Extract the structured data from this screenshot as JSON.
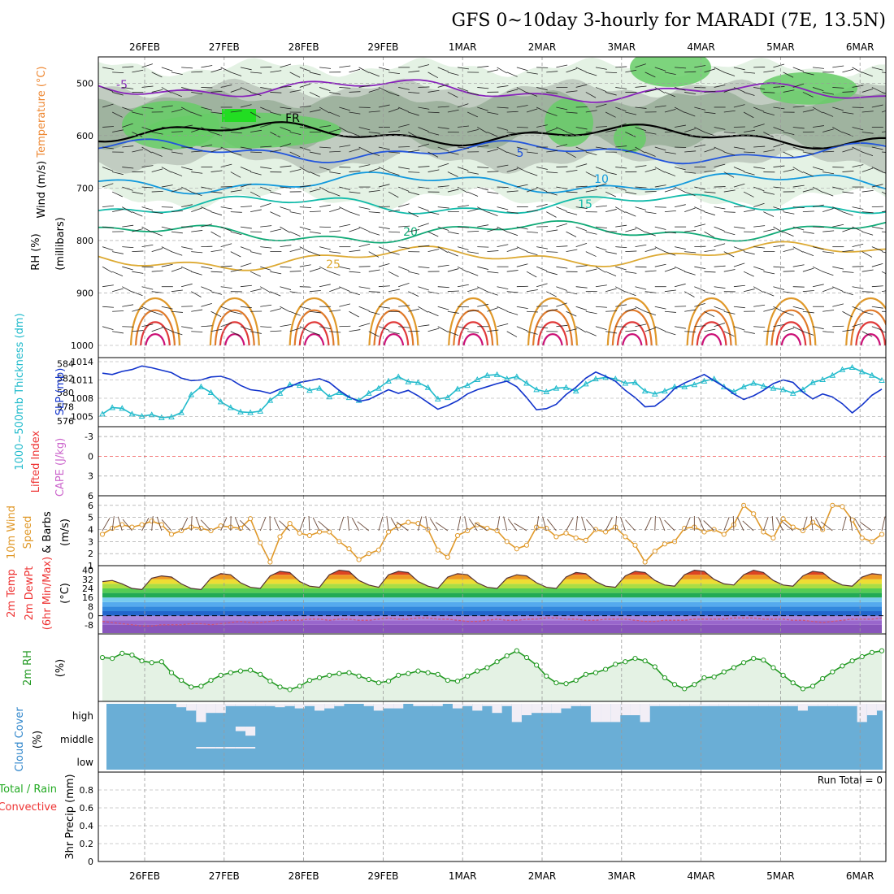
{
  "title": "GFS 0~10day 3-hourly for MARADI (7E, 13.5N)",
  "dates": [
    "26FEB",
    "27FEB",
    "28FEB",
    "29FEB",
    "1MAR",
    "2MAR",
    "3MAR",
    "4MAR",
    "5MAR",
    "6MAR"
  ],
  "run_total": "Run Total = 0",
  "colors": {
    "rh_light": "#e4f2e4",
    "rh_mid": "#bcc8bc",
    "rh_dark": "#90a890",
    "rh_green": "#66cc66",
    "rh_bright": "#22dd22",
    "slp": "#1133cc",
    "thickness": "#22bbcc",
    "wind_speed": "#e0992a",
    "rh2m": "#229922",
    "cloud": "#6aaed6",
    "precip_total": "#22aa22",
    "precip_conv": "#ee3333",
    "lifted_index": "#ee3333",
    "cape": "#cc66cc"
  },
  "panels": {
    "upper_air": {
      "ylabels": [
        {
          "text": "Wind (m/s)",
          "color": "#000000"
        },
        {
          "text": "Temperature (°C)",
          "color": "#ee8833"
        },
        {
          "text": "RH (%)",
          "color": "#000000"
        }
      ],
      "axis_title": "(millibars)",
      "ylim": [
        1000,
        450
      ],
      "yticks": [
        500,
        600,
        700,
        800,
        900,
        1000
      ],
      "isotherms": [
        {
          "label": "-5",
          "value": -5,
          "color": "#8822bb"
        },
        {
          "label": "FR",
          "value": 0,
          "color": "#000000"
        },
        {
          "label": "5",
          "value": 5,
          "color": "#2255dd"
        },
        {
          "label": "10",
          "value": 10,
          "color": "#1199dd"
        },
        {
          "label": "15",
          "value": 15,
          "color": "#11bbaa"
        },
        {
          "label": "20",
          "value": 20,
          "color": "#11aa77"
        },
        {
          "label": "25",
          "value": 25,
          "color": "#ddaa33"
        }
      ]
    },
    "slp_thickness": {
      "ylabels": [
        {
          "text": "SLP (mb)",
          "color": "#1133cc"
        },
        {
          "text": "1000~500mb Thickness (dm)",
          "color": "#22bbcc"
        }
      ],
      "left_ticks": [
        576,
        578,
        580,
        582,
        584
      ],
      "right_ticks": [
        1005,
        1008,
        1011,
        1014
      ]
    },
    "instability": {
      "ylabels": [
        {
          "text": "Lifted Index",
          "color": "#ee3333"
        },
        {
          "text": "CAPE (J/kg)",
          "color": "#cc66cc"
        }
      ],
      "ticks": [
        -3,
        0,
        3,
        6
      ]
    },
    "wind10m": {
      "ylabels": [
        {
          "text": "10m Wind",
          "color": "#e0992a"
        },
        {
          "text": "Speed",
          "color": "#e0992a"
        },
        {
          "text": "& Barbs",
          "color": "#000000"
        },
        {
          "text": "(m/s)",
          "color": "#000000"
        }
      ],
      "ticks": [
        1,
        2,
        3,
        4,
        5,
        6
      ],
      "ylim": [
        1,
        6.8
      ]
    },
    "temp2m": {
      "ylabels": [
        {
          "text": "2m Temp",
          "color": "#ee3333"
        },
        {
          "text": "2m DewPt",
          "color": "#ee3333"
        },
        {
          "text": "(6hr Min/Max)",
          "color": "#ee3333"
        },
        {
          "text": "(°C)",
          "color": "#000000"
        }
      ],
      "ticks": [
        -8,
        0,
        8,
        16,
        24,
        32,
        40
      ],
      "ylim": [
        -16,
        44
      ]
    },
    "rh2m": {
      "ylabels": [
        {
          "text": "2m RH",
          "color": "#229922"
        },
        {
          "text": "(%)",
          "color": "#000000"
        }
      ],
      "ylim": [
        0,
        80
      ]
    },
    "cloud": {
      "ylabels": [
        {
          "text": "Cloud Cover",
          "color": "#3388cc"
        },
        {
          "text": "(%)",
          "color": "#000000"
        }
      ],
      "levels": [
        "high",
        "middle",
        "low"
      ]
    },
    "precip": {
      "ylabels": [
        {
          "text": "Total / Rain",
          "color": "#22aa22"
        },
        {
          "text": "Convective",
          "color": "#ee3333"
        },
        {
          "text": "3hr Precip (mm)",
          "color": "#000000"
        }
      ],
      "ticks": [
        0,
        0.2,
        0.4,
        0.6,
        0.8
      ],
      "ylim": [
        0,
        1
      ]
    }
  },
  "chart_data": {
    "type": "line",
    "x_start": "25FEB 12Z",
    "step_hours": 3,
    "n": 80,
    "slp_mb": [
      1012.1,
      1011.9,
      1012.4,
      1012.7,
      1013.3,
      1013.0,
      1012.6,
      1012.2,
      1011.3,
      1010.9,
      1011.0,
      1011.5,
      1011.6,
      1011.1,
      1010.1,
      1009.4,
      1009.2,
      1008.8,
      1009.5,
      1009.9,
      1010.6,
      1010.9,
      1011.2,
      1010.6,
      1009.3,
      1008.2,
      1007.5,
      1007.8,
      1008.6,
      1009.4,
      1008.8,
      1009.3,
      1008.4,
      1007.3,
      1006.2,
      1006.8,
      1007.6,
      1008.7,
      1009.4,
      1009.9,
      1010.4,
      1010.8,
      1009.9,
      1008.1,
      1006.1,
      1006.3,
      1007.0,
      1008.6,
      1009.8,
      1011.3,
      1012.3,
      1011.6,
      1010.8,
      1009.3,
      1008.1,
      1006.6,
      1006.7,
      1007.9,
      1009.6,
      1010.5,
      1011.2,
      1011.9,
      1010.9,
      1009.9,
      1008.7,
      1007.8,
      1008.4,
      1009.3,
      1010.4,
      1011.0,
      1010.6,
      1009.0,
      1007.9,
      1008.7,
      1008.2,
      1007.1,
      1005.6,
      1006.9,
      1008.5,
      1009.5
    ],
    "thickness_dm": [
      577.0,
      577.9,
      577.8,
      577.0,
      576.7,
      576.9,
      576.5,
      576.6,
      577.2,
      579.7,
      580.8,
      580.0,
      578.7,
      577.9,
      577.3,
      577.2,
      577.4,
      578.9,
      579.9,
      581.1,
      581.0,
      580.3,
      580.6,
      579.4,
      580.0,
      579.3,
      578.9,
      579.9,
      580.6,
      581.6,
      582.2,
      581.5,
      581.4,
      580.7,
      579.1,
      579.3,
      580.5,
      581.0,
      581.8,
      582.4,
      582.5,
      581.9,
      582.2,
      581.3,
      580.4,
      580.1,
      580.6,
      580.7,
      580.2,
      581.2,
      581.9,
      582.1,
      581.9,
      581.3,
      581.4,
      580.2,
      579.8,
      580.2,
      580.8,
      580.8,
      581.1,
      581.6,
      581.9,
      580.8,
      580.1,
      580.8,
      581.3,
      580.9,
      580.6,
      580.4,
      579.9,
      580.4,
      581.4,
      581.8,
      582.4,
      583.2,
      583.5,
      582.9,
      582.4,
      581.7
    ],
    "wind10m_speed_ms": [
      3.6,
      4.1,
      4.4,
      4.2,
      4.4,
      4.7,
      4.4,
      3.6,
      3.9,
      4.2,
      4.1,
      3.9,
      4.3,
      4.2,
      4.1,
      4.9,
      2.9,
      1.3,
      3.4,
      4.5,
      3.7,
      3.5,
      3.8,
      3.8,
      3.0,
      2.4,
      1.5,
      2.0,
      2.3,
      3.8,
      4.3,
      4.6,
      4.5,
      4.0,
      2.3,
      1.7,
      3.5,
      3.9,
      4.4,
      4.1,
      3.9,
      3.0,
      2.4,
      2.7,
      4.2,
      4.1,
      3.4,
      3.7,
      3.3,
      3.1,
      4.0,
      3.8,
      4.2,
      3.4,
      2.7,
      1.3,
      2.2,
      2.8,
      3.0,
      4.1,
      4.2,
      3.8,
      4.0,
      3.6,
      4.4,
      6.0,
      5.3,
      3.8,
      3.3,
      4.9,
      4.2,
      3.9,
      4.6,
      4.0,
      6.0,
      5.9,
      4.8,
      3.3,
      3.0,
      3.6
    ],
    "t2m_c": [
      30,
      31,
      28,
      24,
      23,
      33,
      35,
      34,
      28,
      24,
      23,
      33,
      37,
      36,
      29,
      25,
      24,
      35,
      39,
      38,
      30,
      26,
      25,
      36,
      40,
      39,
      31,
      27,
      25,
      36,
      39,
      38,
      30,
      26,
      24,
      34,
      37,
      36,
      29,
      25,
      24,
      33,
      36,
      35,
      29,
      25,
      24,
      34,
      38,
      37,
      30,
      26,
      25,
      35,
      39,
      38,
      31,
      27,
      26,
      36,
      40,
      39,
      32,
      28,
      27,
      36,
      40,
      38,
      31,
      27,
      26,
      35,
      39,
      38,
      31,
      27,
      26,
      34,
      37,
      36
    ],
    "td2m_c": [
      -5,
      -6,
      -7,
      -8,
      -9,
      -9,
      -8,
      -8,
      -8,
      -7,
      -7,
      -8,
      -7,
      -6,
      -5,
      -6,
      -6,
      -5,
      -4,
      -4,
      -4,
      -3,
      -3,
      -4,
      -3,
      -3,
      -4,
      -4,
      -3,
      -2,
      -3,
      -3,
      -2,
      -2,
      -3,
      -3,
      -4,
      -5,
      -5,
      -4,
      -3,
      -4,
      -4,
      -3,
      -3,
      -2,
      -2,
      -3,
      -3,
      -4,
      -4,
      -3,
      -3,
      -3,
      -4,
      -5,
      -5,
      -4,
      -4,
      -4,
      -3,
      -3,
      -3,
      -3,
      -2,
      -2,
      -2,
      -3,
      -3,
      -3,
      -4,
      -4,
      -5,
      -6,
      -5,
      -4,
      -3,
      -3,
      -3,
      -2
    ],
    "rh2m_pct": [
      52,
      51,
      57,
      55,
      48,
      46,
      47,
      34,
      25,
      17,
      18,
      25,
      31,
      34,
      36,
      37,
      32,
      24,
      17,
      14,
      18,
      25,
      28,
      31,
      33,
      34,
      30,
      26,
      22,
      24,
      31,
      33,
      36,
      34,
      32,
      25,
      24,
      30,
      36,
      40,
      47,
      54,
      60,
      52,
      43,
      30,
      22,
      21,
      25,
      32,
      34,
      38,
      44,
      47,
      51,
      48,
      41,
      28,
      20,
      15,
      20,
      28,
      29,
      35,
      40,
      46,
      51,
      49,
      40,
      31,
      22,
      15,
      18,
      27,
      35,
      42,
      48,
      53,
      58,
      60
    ],
    "cloud_high_pct": [
      0,
      0,
      0,
      0,
      0,
      0,
      0,
      0,
      15,
      30,
      80,
      40,
      40,
      10,
      10,
      10,
      10,
      10,
      15,
      10,
      20,
      10,
      30,
      20,
      10,
      0,
      0,
      10,
      30,
      20,
      20,
      0,
      10,
      10,
      10,
      0,
      20,
      10,
      30,
      10,
      40,
      10,
      80,
      50,
      40,
      40,
      40,
      20,
      10,
      10,
      80,
      80,
      80,
      50,
      50,
      80,
      10,
      10,
      10,
      10,
      10,
      10,
      10,
      10,
      10,
      10,
      10,
      10,
      10,
      10,
      10,
      30,
      10,
      10,
      10,
      10,
      10,
      80,
      50,
      30
    ],
    "cloud_mid_pct": [
      0,
      0,
      0,
      0,
      0,
      0,
      0,
      0,
      0,
      0,
      0,
      0,
      0,
      0,
      20,
      40,
      0,
      0,
      0,
      0,
      0,
      0,
      0,
      0,
      0,
      0,
      0,
      0,
      0,
      0,
      0,
      0,
      0,
      0,
      0,
      0,
      0,
      0,
      0,
      0,
      0,
      0,
      0,
      0,
      0,
      0,
      0,
      0,
      0,
      0,
      0,
      0,
      0,
      0,
      0,
      0,
      0,
      0,
      0,
      0,
      0,
      0,
      0,
      0,
      0,
      0,
      0,
      0,
      0,
      0,
      0,
      0,
      0,
      0,
      0,
      0,
      0,
      0,
      0,
      0
    ],
    "cloud_low_pct": [
      0,
      0,
      0,
      0,
      0,
      0,
      0,
      0,
      0,
      0,
      5,
      5,
      5,
      5,
      5,
      5,
      0,
      0,
      0,
      0,
      0,
      0,
      0,
      0,
      0,
      0,
      0,
      0,
      0,
      0,
      0,
      0,
      0,
      0,
      0,
      0,
      0,
      0,
      0,
      0,
      0,
      0,
      0,
      0,
      0,
      0,
      0,
      0,
      0,
      0,
      0,
      0,
      0,
      0,
      0,
      0,
      0,
      0,
      0,
      0,
      0,
      0,
      0,
      0,
      0,
      0,
      0,
      0,
      0,
      0,
      0,
      0,
      0,
      0,
      0,
      0,
      0,
      0,
      0,
      0
    ],
    "precip_3hr_mm": [
      0,
      0,
      0,
      0,
      0,
      0,
      0,
      0,
      0,
      0,
      0,
      0,
      0,
      0,
      0,
      0,
      0,
      0,
      0,
      0,
      0,
      0,
      0,
      0,
      0,
      0,
      0,
      0,
      0,
      0,
      0,
      0,
      0,
      0,
      0,
      0,
      0,
      0,
      0,
      0,
      0,
      0,
      0,
      0,
      0,
      0,
      0,
      0,
      0,
      0,
      0,
      0,
      0,
      0,
      0,
      0,
      0,
      0,
      0,
      0,
      0,
      0,
      0,
      0,
      0,
      0,
      0,
      0,
      0,
      0,
      0,
      0,
      0,
      0,
      0,
      0,
      0,
      0,
      0,
      0
    ],
    "lifted_index": "none",
    "cape": "none"
  }
}
